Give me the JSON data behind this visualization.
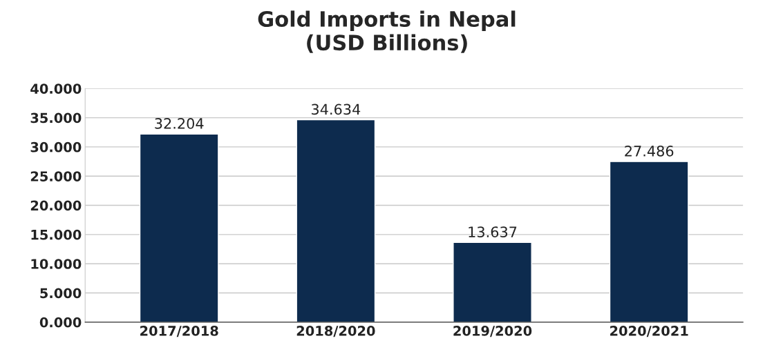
{
  "chart_data": {
    "type": "bar",
    "title": "Gold Imports in Nepal\n(USD Billions)",
    "categories": [
      "2017/2018",
      "2018/2020",
      "2019/2020",
      "2020/2021"
    ],
    "values": [
      32.204,
      34.634,
      13.637,
      27.486
    ],
    "color": "#0d2b4e",
    "ylim": [
      0,
      40
    ],
    "yticks": [
      {
        "value": 0,
        "label": "0.000"
      },
      {
        "value": 5,
        "label": "5.000"
      },
      {
        "value": 10,
        "label": "10.000"
      },
      {
        "value": 15,
        "label": "15.000"
      },
      {
        "value": 20,
        "label": "20.000"
      },
      {
        "value": 25,
        "label": "25.000"
      },
      {
        "value": 30,
        "label": "30.000"
      },
      {
        "value": 35,
        "label": "35.000"
      },
      {
        "value": 40,
        "label": "40.000"
      }
    ],
    "grid": "y",
    "data_labels": true
  }
}
